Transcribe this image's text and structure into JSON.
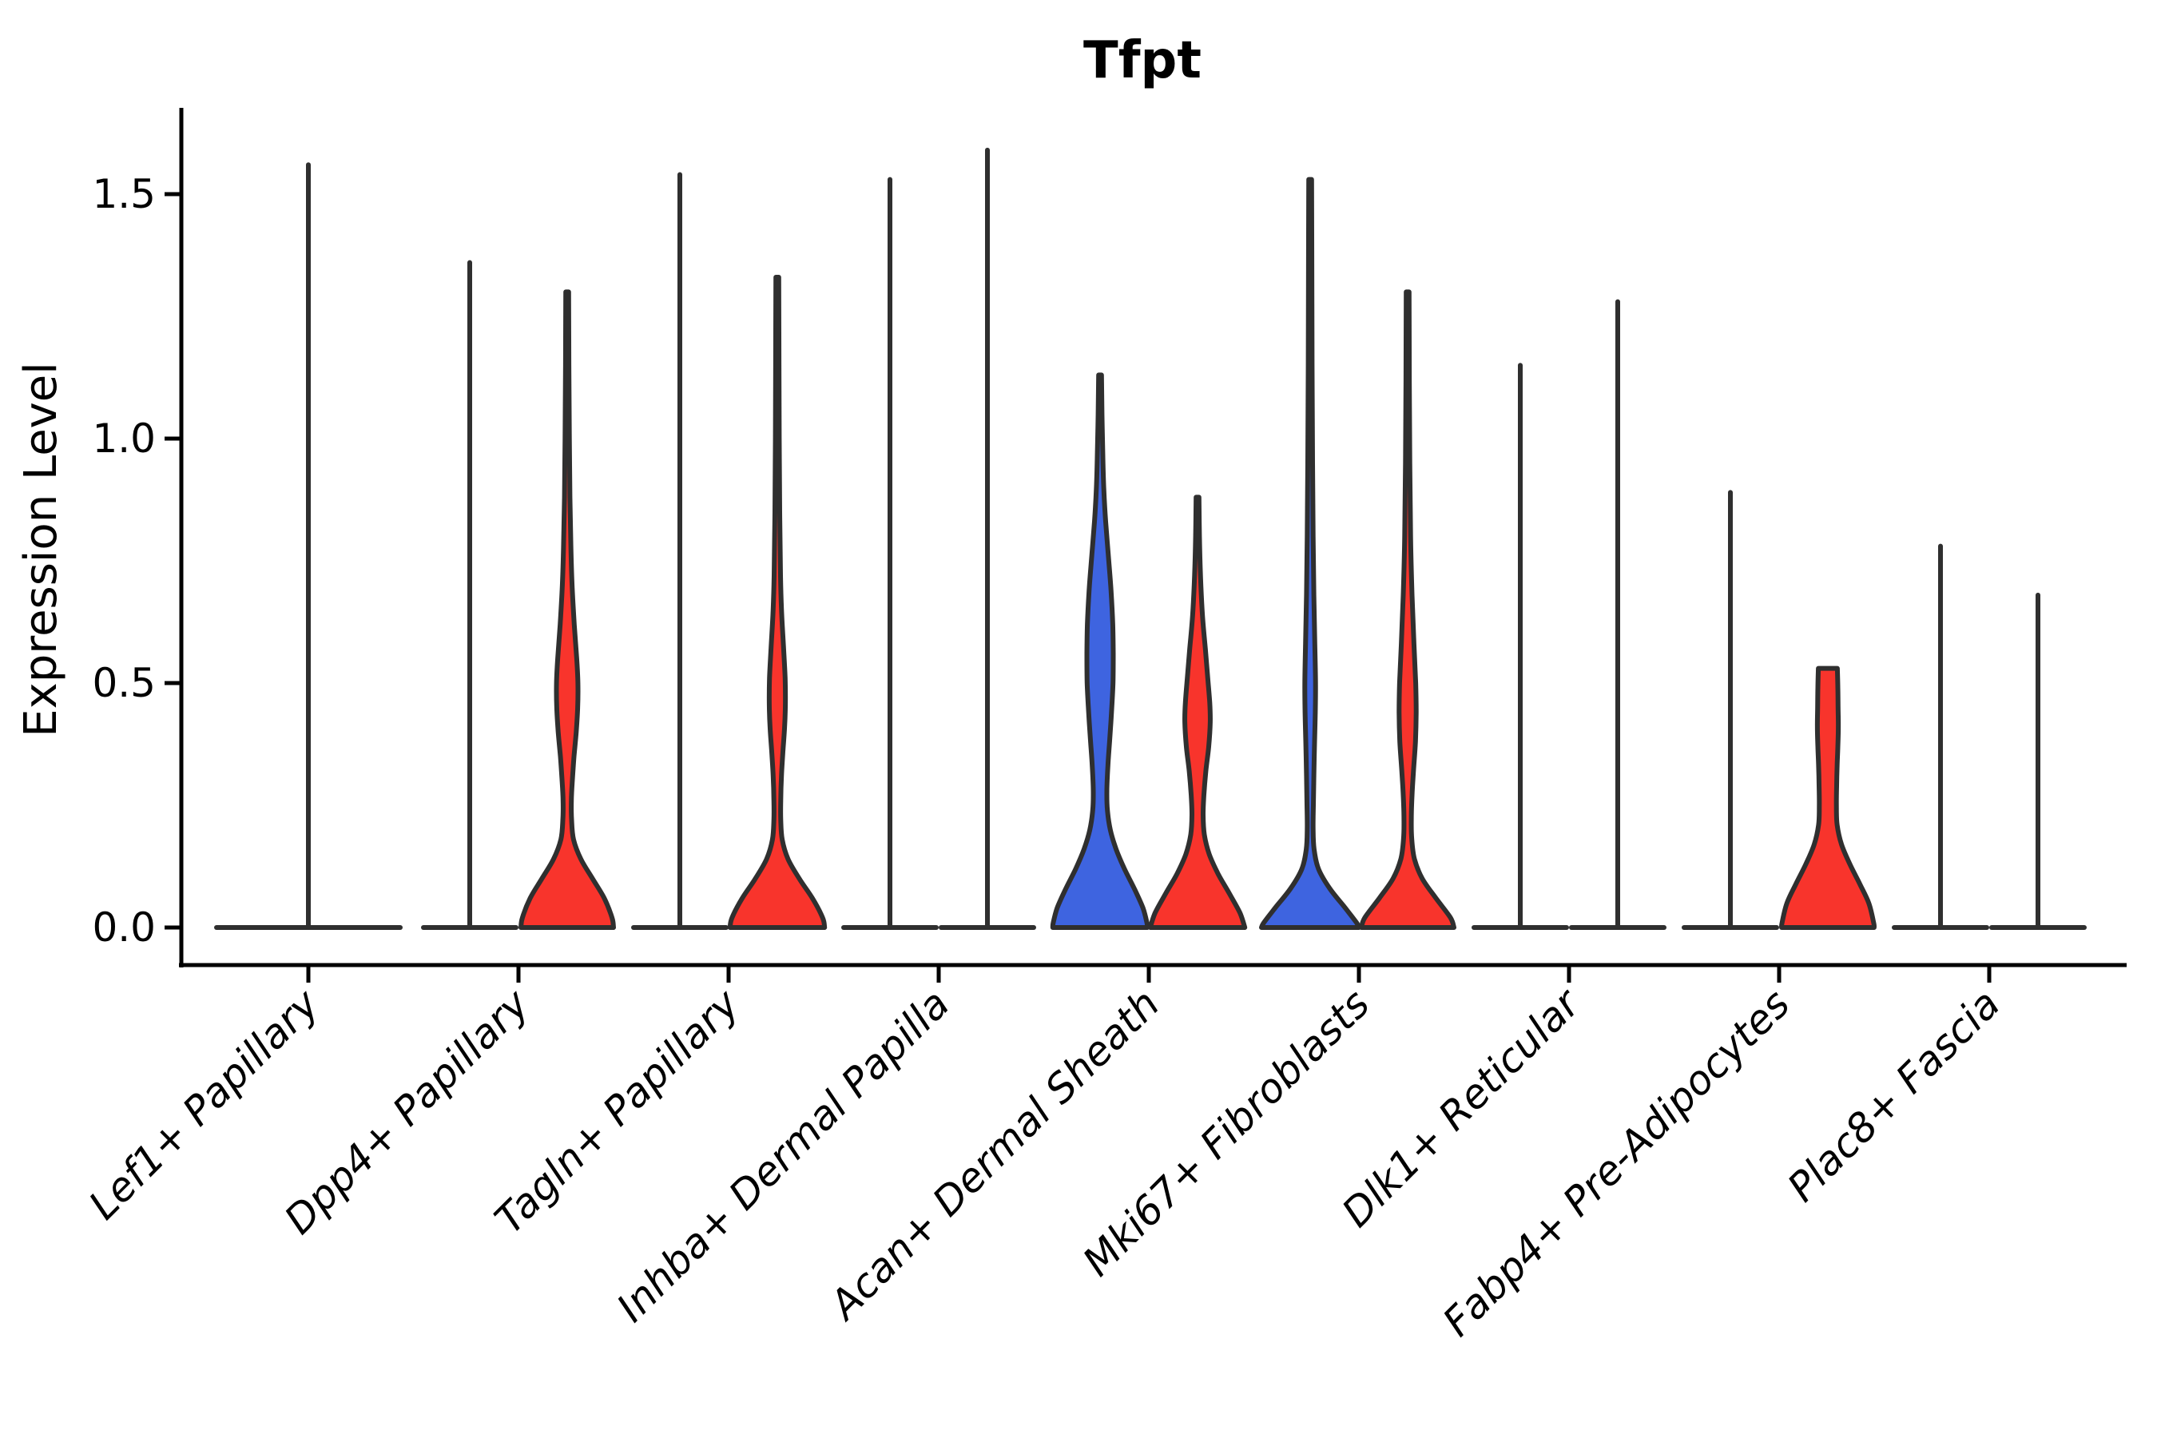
{
  "chart_data": {
    "type": "violin",
    "title": "Tfpt",
    "ylabel": "Expression Level",
    "xlabel": "",
    "ylim": [
      0,
      1.67
    ],
    "yticks": [
      0.0,
      0.5,
      1.0,
      1.5
    ],
    "ytick_labels": [
      "0.0",
      "0.5",
      "1.0",
      "1.5"
    ],
    "grid": false,
    "legend": "none",
    "x_tick_rotation_deg": 45,
    "colors": {
      "red_fill": "#f8342c",
      "blue_fill": "#3e64e0",
      "outline": "#2f2f2f",
      "axis": "#000000"
    },
    "categories": [
      {
        "label": "Lef1+ Papillary",
        "violins": [
          {
            "group": "single",
            "color": "none",
            "style": "spike",
            "max": 1.56
          }
        ]
      },
      {
        "label": "Dpp4+ Papillary",
        "violins": [
          {
            "group": "left",
            "color": "none",
            "style": "spike",
            "max": 1.36
          },
          {
            "group": "right",
            "color": "red",
            "style": "shaped",
            "max": 1.3,
            "profile": [
              [
                1.3,
                0.03
              ],
              [
                1.15,
                0.035
              ],
              [
                1.0,
                0.045
              ],
              [
                0.88,
                0.055
              ],
              [
                0.78,
                0.075
              ],
              [
                0.7,
                0.1
              ],
              [
                0.62,
                0.145
              ],
              [
                0.55,
                0.195
              ],
              [
                0.5,
                0.22
              ],
              [
                0.45,
                0.215
              ],
              [
                0.4,
                0.185
              ],
              [
                0.35,
                0.14
              ],
              [
                0.3,
                0.105
              ],
              [
                0.26,
                0.085
              ],
              [
                0.22,
                0.09
              ],
              [
                0.18,
                0.13
              ],
              [
                0.14,
                0.28
              ],
              [
                0.1,
                0.52
              ],
              [
                0.06,
                0.76
              ],
              [
                0.02,
                0.92
              ],
              [
                0.0,
                0.95
              ]
            ]
          }
        ]
      },
      {
        "label": "Tagln+ Papillary",
        "violins": [
          {
            "group": "left",
            "color": "none",
            "style": "spike",
            "max": 1.54
          },
          {
            "group": "right",
            "color": "red",
            "style": "shaped",
            "max": 1.33,
            "profile": [
              [
                1.33,
                0.03
              ],
              [
                1.15,
                0.035
              ],
              [
                1.0,
                0.04
              ],
              [
                0.85,
                0.05
              ],
              [
                0.72,
                0.065
              ],
              [
                0.64,
                0.09
              ],
              [
                0.57,
                0.13
              ],
              [
                0.51,
                0.16
              ],
              [
                0.46,
                0.165
              ],
              [
                0.41,
                0.15
              ],
              [
                0.36,
                0.115
              ],
              [
                0.31,
                0.085
              ],
              [
                0.26,
                0.07
              ],
              [
                0.22,
                0.07
              ],
              [
                0.18,
                0.1
              ],
              [
                0.14,
                0.22
              ],
              [
                0.1,
                0.45
              ],
              [
                0.06,
                0.72
              ],
              [
                0.02,
                0.93
              ],
              [
                0.0,
                0.97
              ]
            ]
          }
        ]
      },
      {
        "label": "Inhba+ Dermal Papilla",
        "violins": [
          {
            "group": "left",
            "color": "none",
            "style": "spike",
            "max": 1.53
          },
          {
            "group": "right",
            "color": "none",
            "style": "spike",
            "max": 1.59
          }
        ]
      },
      {
        "label": "Acan+ Dermal Sheath",
        "violins": [
          {
            "group": "left",
            "color": "blue",
            "style": "shaped",
            "max": 1.13,
            "profile": [
              [
                1.13,
                0.03
              ],
              [
                1.05,
                0.04
              ],
              [
                0.97,
                0.055
              ],
              [
                0.9,
                0.075
              ],
              [
                0.83,
                0.115
              ],
              [
                0.76,
                0.17
              ],
              [
                0.69,
                0.225
              ],
              [
                0.62,
                0.26
              ],
              [
                0.56,
                0.27
              ],
              [
                0.5,
                0.265
              ],
              [
                0.44,
                0.235
              ],
              [
                0.38,
                0.195
              ],
              [
                0.33,
                0.16
              ],
              [
                0.28,
                0.14
              ],
              [
                0.24,
                0.15
              ],
              [
                0.2,
                0.21
              ],
              [
                0.16,
                0.33
              ],
              [
                0.12,
                0.5
              ],
              [
                0.08,
                0.7
              ],
              [
                0.04,
                0.88
              ],
              [
                0.01,
                0.96
              ],
              [
                0.0,
                0.97
              ]
            ]
          },
          {
            "group": "right",
            "color": "red",
            "style": "shaped",
            "max": 0.88,
            "profile": [
              [
                0.88,
                0.03
              ],
              [
                0.8,
                0.04
              ],
              [
                0.72,
                0.06
              ],
              [
                0.64,
                0.1
              ],
              [
                0.57,
                0.16
              ],
              [
                0.51,
                0.21
              ],
              [
                0.46,
                0.25
              ],
              [
                0.42,
                0.26
              ],
              [
                0.37,
                0.23
              ],
              [
                0.32,
                0.17
              ],
              [
                0.27,
                0.13
              ],
              [
                0.23,
                0.115
              ],
              [
                0.19,
                0.14
              ],
              [
                0.15,
                0.24
              ],
              [
                0.11,
                0.42
              ],
              [
                0.07,
                0.65
              ],
              [
                0.03,
                0.87
              ],
              [
                0.0,
                0.97
              ]
            ]
          }
        ]
      },
      {
        "label": "Mki67+ Fibroblasts",
        "violins": [
          {
            "group": "left",
            "color": "blue",
            "style": "shaped",
            "max": 1.53,
            "profile": [
              [
                1.53,
                0.03
              ],
              [
                1.35,
                0.035
              ],
              [
                1.15,
                0.04
              ],
              [
                0.95,
                0.05
              ],
              [
                0.8,
                0.06
              ],
              [
                0.68,
                0.075
              ],
              [
                0.58,
                0.095
              ],
              [
                0.5,
                0.11
              ],
              [
                0.44,
                0.105
              ],
              [
                0.38,
                0.09
              ],
              [
                0.31,
                0.075
              ],
              [
                0.25,
                0.065
              ],
              [
                0.2,
                0.06
              ],
              [
                0.16,
                0.08
              ],
              [
                0.12,
                0.17
              ],
              [
                0.08,
                0.4
              ],
              [
                0.04,
                0.72
              ],
              [
                0.01,
                0.95
              ],
              [
                0.0,
                1.0
              ]
            ]
          },
          {
            "group": "right",
            "color": "red",
            "style": "shaped",
            "max": 1.3,
            "profile": [
              [
                1.3,
                0.03
              ],
              [
                1.12,
                0.035
              ],
              [
                0.95,
                0.045
              ],
              [
                0.8,
                0.06
              ],
              [
                0.68,
                0.09
              ],
              [
                0.58,
                0.13
              ],
              [
                0.5,
                0.165
              ],
              [
                0.44,
                0.175
              ],
              [
                0.38,
                0.16
              ],
              [
                0.32,
                0.12
              ],
              [
                0.27,
                0.09
              ],
              [
                0.22,
                0.075
              ],
              [
                0.18,
                0.085
              ],
              [
                0.14,
                0.14
              ],
              [
                0.1,
                0.3
              ],
              [
                0.06,
                0.58
              ],
              [
                0.02,
                0.88
              ],
              [
                0.0,
                0.95
              ]
            ]
          }
        ]
      },
      {
        "label": "Dlk1+ Reticular",
        "violins": [
          {
            "group": "left",
            "color": "none",
            "style": "spike",
            "max": 1.15
          },
          {
            "group": "right",
            "color": "none",
            "style": "spike",
            "max": 1.28
          }
        ]
      },
      {
        "label": "Fabp4+ Pre-Adipocytes",
        "violins": [
          {
            "group": "left",
            "color": "none",
            "style": "spike",
            "max": 0.89
          },
          {
            "group": "right",
            "color": "red",
            "style": "shaped",
            "max": 0.53,
            "profile": [
              [
                0.53,
                0.195
              ],
              [
                0.49,
                0.205
              ],
              [
                0.45,
                0.21
              ],
              [
                0.41,
                0.215
              ],
              [
                0.37,
                0.205
              ],
              [
                0.33,
                0.19
              ],
              [
                0.29,
                0.18
              ],
              [
                0.25,
                0.175
              ],
              [
                0.21,
                0.19
              ],
              [
                0.17,
                0.28
              ],
              [
                0.13,
                0.45
              ],
              [
                0.09,
                0.65
              ],
              [
                0.05,
                0.84
              ],
              [
                0.01,
                0.94
              ],
              [
                0.0,
                0.95
              ]
            ]
          }
        ]
      },
      {
        "label": "Plac8+ Fascia",
        "violins": [
          {
            "group": "left",
            "color": "none",
            "style": "spike",
            "max": 0.78
          },
          {
            "group": "right",
            "color": "none",
            "style": "spike",
            "max": 0.68
          }
        ]
      }
    ]
  }
}
